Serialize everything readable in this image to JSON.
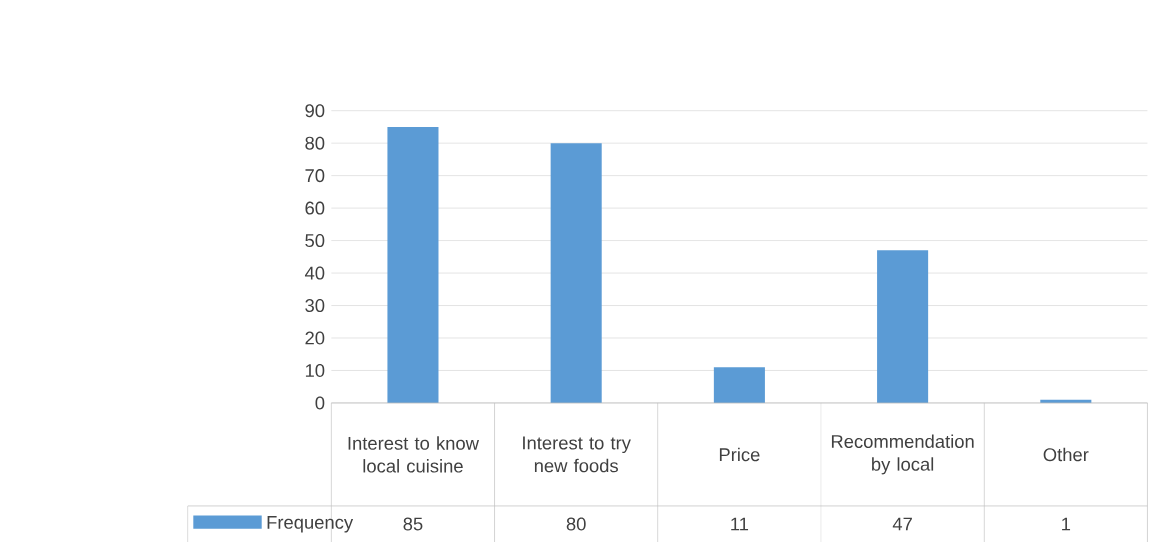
{
  "chart_data": {
    "type": "bar",
    "categories": [
      "Interest to know local cuisine",
      "Interest to try new foods",
      "Price",
      "Recommendation by local",
      "Other"
    ],
    "series": [
      {
        "name": "Frequency",
        "color": "#5b9bd5",
        "values": [
          85,
          80,
          11,
          47,
          1
        ]
      }
    ],
    "ylim": [
      0,
      90
    ],
    "yticks": [
      0,
      10,
      20,
      30,
      40,
      50,
      60,
      70,
      80,
      90
    ],
    "grid": "y",
    "legend": "bottom",
    "data_labels": true
  }
}
